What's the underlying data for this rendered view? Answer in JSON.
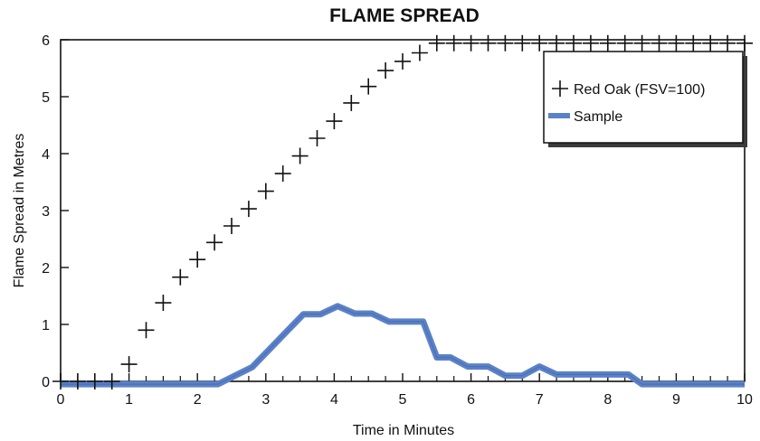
{
  "chart_data": {
    "type": "line",
    "title": "FLAME SPREAD",
    "xlabel": "Time in Minutes",
    "ylabel": "Flame Spread in Metres",
    "xlim": [
      0,
      10
    ],
    "ylim": [
      0,
      6
    ],
    "xticks": [
      "0",
      "1",
      "2",
      "3",
      "4",
      "5",
      "6",
      "7",
      "8",
      "9",
      "10"
    ],
    "yticks": [
      "0",
      "1",
      "2",
      "3",
      "4",
      "5",
      "6"
    ],
    "grid": false,
    "legend_position": "top-right",
    "series": [
      {
        "name": "Red Oak (FSV=100)",
        "marker": "plus",
        "color": "#111111",
        "points": [
          [
            0.0,
            0.0
          ],
          [
            0.25,
            0.0
          ],
          [
            0.5,
            0.0
          ],
          [
            0.75,
            0.0
          ],
          [
            1.0,
            0.3
          ],
          [
            1.25,
            0.9
          ],
          [
            1.5,
            1.38
          ],
          [
            1.75,
            1.83
          ],
          [
            2.0,
            2.14
          ],
          [
            2.25,
            2.44
          ],
          [
            2.5,
            2.73
          ],
          [
            2.75,
            3.03
          ],
          [
            3.0,
            3.34
          ],
          [
            3.25,
            3.65
          ],
          [
            3.5,
            3.96
          ],
          [
            3.75,
            4.27
          ],
          [
            4.0,
            4.57
          ],
          [
            4.25,
            4.89
          ],
          [
            4.5,
            5.18
          ],
          [
            4.75,
            5.46
          ],
          [
            5.0,
            5.62
          ],
          [
            5.25,
            5.77
          ],
          [
            5.5,
            5.94
          ],
          [
            5.75,
            5.94
          ],
          [
            6.0,
            5.94
          ],
          [
            6.25,
            5.94
          ],
          [
            6.5,
            5.94
          ],
          [
            6.75,
            5.94
          ],
          [
            7.0,
            5.94
          ],
          [
            7.25,
            5.94
          ],
          [
            7.5,
            5.94
          ],
          [
            7.75,
            5.94
          ],
          [
            8.0,
            5.94
          ],
          [
            8.25,
            5.94
          ],
          [
            8.5,
            5.94
          ],
          [
            8.75,
            5.94
          ],
          [
            9.0,
            5.94
          ],
          [
            9.25,
            5.94
          ],
          [
            9.5,
            5.94
          ],
          [
            9.75,
            5.94
          ],
          [
            10.0,
            5.94
          ]
        ]
      },
      {
        "name": "Sample",
        "marker": "none",
        "color": "#5b82c8",
        "points": [
          [
            0.0,
            -0.05
          ],
          [
            2.3,
            -0.05
          ],
          [
            2.8,
            0.25
          ],
          [
            3.55,
            1.18
          ],
          [
            3.8,
            1.18
          ],
          [
            4.05,
            1.32
          ],
          [
            4.3,
            1.19
          ],
          [
            4.55,
            1.19
          ],
          [
            4.8,
            1.05
          ],
          [
            5.3,
            1.05
          ],
          [
            5.5,
            0.42
          ],
          [
            5.7,
            0.42
          ],
          [
            5.95,
            0.26
          ],
          [
            6.25,
            0.26
          ],
          [
            6.5,
            0.1
          ],
          [
            6.75,
            0.1
          ],
          [
            7.0,
            0.26
          ],
          [
            7.25,
            0.12
          ],
          [
            8.3,
            0.12
          ],
          [
            8.5,
            -0.05
          ],
          [
            10.0,
            -0.05
          ]
        ]
      }
    ]
  }
}
